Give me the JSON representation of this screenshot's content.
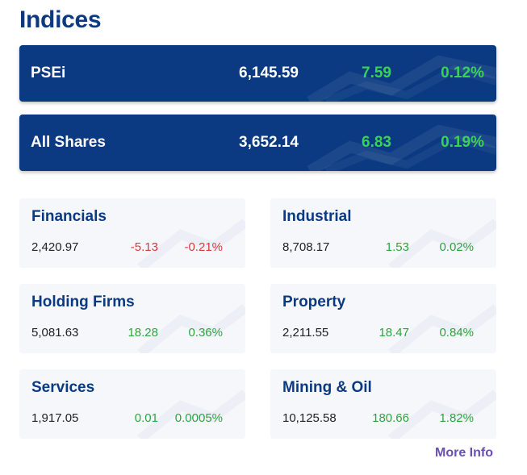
{
  "title": "Indices",
  "colors": {
    "brand_blue": "#0b3a82",
    "positive_main": "#39d353",
    "positive": "#2ea43f",
    "negative": "#d43a3a",
    "link": "#6a4fb0"
  },
  "main_indices": [
    {
      "name": "PSEi",
      "value": "6,145.59",
      "change": "7.59",
      "percent": "0.12%",
      "direction": "up"
    },
    {
      "name": "All Shares",
      "value": "3,652.14",
      "change": "6.83",
      "percent": "0.19%",
      "direction": "up"
    }
  ],
  "sectors": [
    {
      "name": "Financials",
      "value": "2,420.97",
      "change": "-5.13",
      "percent": "-0.21%",
      "direction": "down"
    },
    {
      "name": "Industrial",
      "value": "8,708.17",
      "change": "1.53",
      "percent": "0.02%",
      "direction": "up"
    },
    {
      "name": "Holding Firms",
      "value": "5,081.63",
      "change": "18.28",
      "percent": "0.36%",
      "direction": "up"
    },
    {
      "name": "Property",
      "value": "2,211.55",
      "change": "18.47",
      "percent": "0.84%",
      "direction": "up"
    },
    {
      "name": "Services",
      "value": "1,917.05",
      "change": "0.01",
      "percent": "0.0005%",
      "direction": "up"
    },
    {
      "name": "Mining & Oil",
      "value": "10,125.58",
      "change": "180.66",
      "percent": "1.82%",
      "direction": "up"
    }
  ],
  "more_info_label": "More Info"
}
